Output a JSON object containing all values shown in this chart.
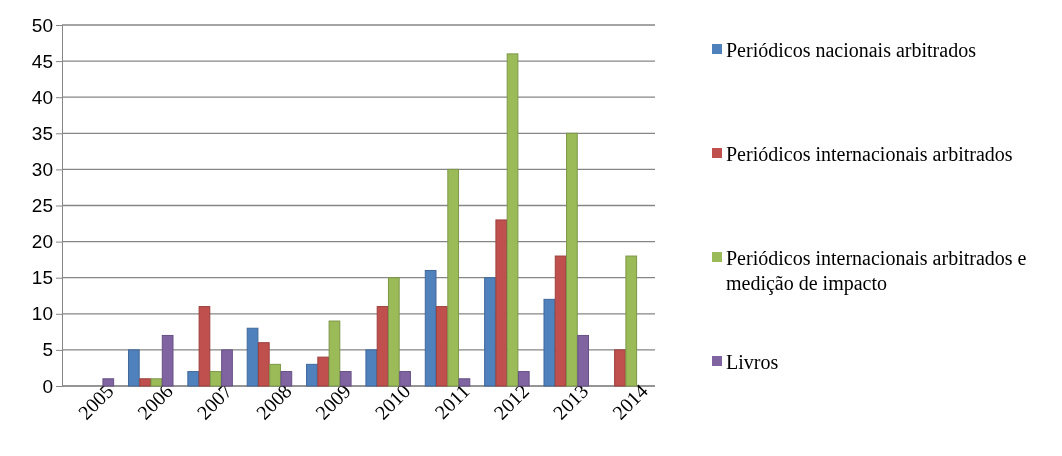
{
  "chart_data": {
    "type": "bar",
    "categories": [
      "2005",
      "2006",
      "2007",
      "2008",
      "2009",
      "2010",
      "2011",
      "2012",
      "2013",
      "2014"
    ],
    "series": [
      {
        "name": "Periódicos nacionais arbitrados",
        "color": "#4f81bd",
        "values": [
          0,
          5,
          2,
          8,
          3,
          5,
          16,
          15,
          12,
          0
        ]
      },
      {
        "name": "Periódicos internacionais arbitrados",
        "color": "#c0504d",
        "values": [
          0,
          1,
          11,
          6,
          4,
          11,
          11,
          23,
          18,
          5
        ]
      },
      {
        "name": "Periódicos internacionais arbitrados e medição de impacto",
        "color": "#9bbb59",
        "values": [
          0,
          1,
          2,
          3,
          9,
          15,
          30,
          46,
          35,
          18
        ]
      },
      {
        "name": "Livros",
        "color": "#8064a2",
        "values": [
          1,
          7,
          5,
          2,
          2,
          2,
          1,
          2,
          7,
          0
        ]
      }
    ],
    "ylim": [
      0,
      50
    ],
    "yticks": [
      0,
      5,
      10,
      15,
      20,
      25,
      30,
      35,
      40,
      45,
      50
    ],
    "grid": "y",
    "legend": "right"
  }
}
